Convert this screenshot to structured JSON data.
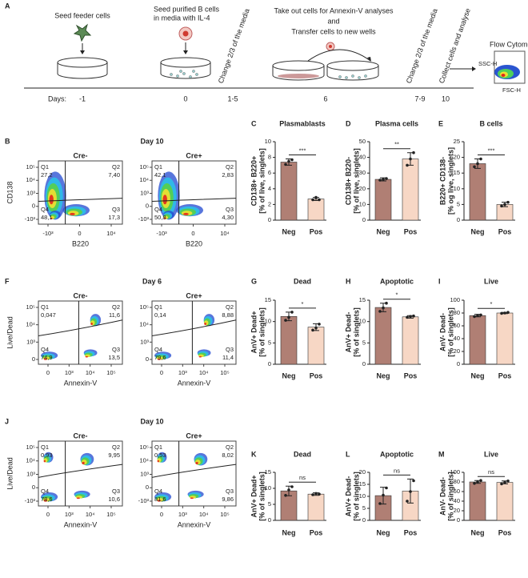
{
  "panel_a": {
    "letter": "A",
    "step1": "Seed feeder cells",
    "step2a": "Seed purified B cells",
    "step2b": "in media with IL-4",
    "change1": "Change 2/3 of the media",
    "step3a": "Take out cells for Annexin-V analyses",
    "step3b": "and",
    "step3c": "Transfer cells to new wells",
    "change2": "Change 2/3 of the media",
    "collect": "Collect  cells and analyse",
    "flow": "Flow Cytometry",
    "ssc": "SSC-H",
    "fsc": "FSC-H",
    "days_label": "Days:",
    "days": [
      "-1",
      "0",
      "1-5",
      "6",
      "7-9",
      "10"
    ]
  },
  "flow_panels": [
    {
      "letter": "B",
      "title": "Day 10",
      "xlabel": "B220",
      "ylabel": "CD138",
      "xticks": [
        "-10³",
        "0",
        "10⁴"
      ],
      "yticks": [
        "10⁵",
        "10⁴",
        "10³",
        "0",
        "-10³"
      ],
      "plots": [
        {
          "label": "Cre-",
          "quadrants": [
            {
              "name": "Q1",
              "value": "27,2"
            },
            {
              "name": "Q2",
              "value": "7,40"
            },
            {
              "name": "Q3",
              "value": "17,3"
            },
            {
              "name": "Q4",
              "value": "48,1"
            }
          ]
        },
        {
          "label": "Cre+",
          "quadrants": [
            {
              "name": "Q1",
              "value": "42,1"
            },
            {
              "name": "Q2",
              "value": "2,83"
            },
            {
              "name": "Q3",
              "value": "4,30"
            },
            {
              "name": "Q4",
              "value": "50,8"
            }
          ]
        }
      ]
    },
    {
      "letter": "F",
      "title": "Day 6",
      "xlabel": "Annexin-V",
      "ylabel": "Live/Dead",
      "xticks": [
        "0",
        "10³",
        "10⁴",
        "10⁵"
      ],
      "yticks": [
        "10⁵",
        "10⁴",
        "10³",
        "0"
      ],
      "plots": [
        {
          "label": "Cre-",
          "quadrants": [
            {
              "name": "Q1",
              "value": "0,047"
            },
            {
              "name": "Q2",
              "value": "11,6"
            },
            {
              "name": "Q3",
              "value": "13,5"
            },
            {
              "name": "Q4",
              "value": "74,9"
            }
          ]
        },
        {
          "label": "Cre+",
          "quadrants": [
            {
              "name": "Q1",
              "value": "0,14"
            },
            {
              "name": "Q2",
              "value": "8,88"
            },
            {
              "name": "Q3",
              "value": "11,4"
            },
            {
              "name": "Q4",
              "value": "79,6"
            }
          ]
        }
      ]
    },
    {
      "letter": "J",
      "title": "Day 10",
      "xlabel": "Annexin-V",
      "ylabel": "Live/Dead",
      "xticks": [
        "0",
        "10³",
        "10⁴",
        "10⁵"
      ],
      "yticks": [
        "10⁵",
        "10⁴",
        "10³",
        "0",
        "-10³"
      ],
      "plots": [
        {
          "label": "Cre-",
          "quadrants": [
            {
              "name": "Q1",
              "value": "0,93"
            },
            {
              "name": "Q2",
              "value": "9,95"
            },
            {
              "name": "Q3",
              "value": "10,6"
            },
            {
              "name": "Q4",
              "value": "78,6"
            }
          ]
        },
        {
          "label": "Cre+",
          "quadrants": [
            {
              "name": "Q1",
              "value": "0,53"
            },
            {
              "name": "Q2",
              "value": "8,02"
            },
            {
              "name": "Q3",
              "value": "9,86"
            },
            {
              "name": "Q4",
              "value": "81,6"
            }
          ]
        }
      ]
    }
  ],
  "chart_data": [
    {
      "type": "bar",
      "panel": "C",
      "title": "Plasmablasts",
      "ylabel": [
        "CD138+ B220+",
        "[% of live, singlets]"
      ],
      "categories": [
        "Neg",
        "Pos"
      ],
      "values": [
        7.4,
        2.7
      ],
      "errors": [
        0.4,
        0.2
      ],
      "points": [
        [
          7.1,
          7.5,
          7.7
        ],
        [
          2.6,
          2.9,
          2.6
        ]
      ],
      "colors": [
        "#b07f74",
        "#f7d7c5"
      ],
      "ylim": [
        0,
        10
      ],
      "yticks": [
        0,
        2,
        4,
        6,
        8,
        10
      ],
      "significance": "***"
    },
    {
      "type": "bar",
      "panel": "D",
      "title": "Plasma cells",
      "ylabel": [
        "CD138+ B220-",
        "[% of live, singlets]"
      ],
      "categories": [
        "Neg",
        "Pos"
      ],
      "values": [
        26,
        39
      ],
      "errors": [
        1,
        4
      ],
      "points": [
        [
          25.5,
          26,
          26.5
        ],
        [
          35,
          39,
          43
        ]
      ],
      "colors": [
        "#b07f74",
        "#f7d7c5"
      ],
      "ylim": [
        0,
        50
      ],
      "yticks": [
        0,
        10,
        20,
        30,
        40,
        50
      ],
      "significance": "**"
    },
    {
      "type": "bar",
      "panel": "E",
      "title": "B cells",
      "ylabel": [
        "B220+ CD138-",
        "[% og live, singlets]"
      ],
      "categories": [
        "Neg",
        "Pos"
      ],
      "values": [
        18,
        5
      ],
      "errors": [
        1.5,
        0.7
      ],
      "points": [
        [
          17,
          18,
          19.5
        ],
        [
          4.5,
          5,
          5.7
        ]
      ],
      "colors": [
        "#b07f74",
        "#f7d7c5"
      ],
      "ylim": [
        0,
        25
      ],
      "yticks": [
        0,
        5,
        10,
        15,
        20,
        25
      ],
      "significance": "***"
    },
    {
      "type": "bar",
      "panel": "G",
      "title": "Dead",
      "ylabel": [
        "AnV+ Dead+",
        "[% of singlets]"
      ],
      "categories": [
        "Neg",
        "Pos"
      ],
      "values": [
        11.2,
        8.7
      ],
      "errors": [
        1,
        0.8
      ],
      "points": [
        [
          10.3,
          11,
          12.2
        ],
        [
          8,
          8.5,
          9.4
        ]
      ],
      "colors": [
        "#b07f74",
        "#f7d7c5"
      ],
      "ylim": [
        0,
        15
      ],
      "yticks": [
        0,
        5,
        10,
        15
      ],
      "significance": "*"
    },
    {
      "type": "bar",
      "panel": "H",
      "title": "Apoptotic",
      "ylabel": [
        "AnV+ Dead-",
        "[% of singlets]"
      ],
      "categories": [
        "Neg",
        "Pos"
      ],
      "values": [
        13.3,
        11.1
      ],
      "errors": [
        1,
        0.3
      ],
      "points": [
        [
          12.4,
          13.2,
          14.3
        ],
        [
          11,
          11.2,
          11.3
        ]
      ],
      "colors": [
        "#b07f74",
        "#f7d7c5"
      ],
      "ylim": [
        0,
        15
      ],
      "yticks": [
        0,
        5,
        10,
        15
      ],
      "significance": "*"
    },
    {
      "type": "bar",
      "panel": "I",
      "title": "Live",
      "ylabel": [
        "AnV- Dead-",
        "[% of singlets]"
      ],
      "categories": [
        "Neg",
        "Pos"
      ],
      "values": [
        76,
        80
      ],
      "errors": [
        2,
        1
      ],
      "points": [
        [
          74.5,
          76,
          77
        ],
        [
          79.5,
          80,
          81
        ]
      ],
      "colors": [
        "#b07f74",
        "#f7d7c5"
      ],
      "ylim": [
        0,
        100
      ],
      "yticks": [
        0,
        20,
        40,
        60,
        80,
        100
      ],
      "significance": "*"
    },
    {
      "type": "bar",
      "panel": "K",
      "title": "Dead",
      "ylabel": [
        "AnV+ Dead+",
        "[% of singlets]"
      ],
      "categories": [
        "Neg",
        "Pos"
      ],
      "values": [
        9.2,
        8.2
      ],
      "errors": [
        1.5,
        0.4
      ],
      "points": [
        [
          7.8,
          9.5,
          10.5
        ],
        [
          8,
          8.4,
          8.2
        ]
      ],
      "colors": [
        "#b07f74",
        "#f7d7c5"
      ],
      "ylim": [
        0,
        15
      ],
      "yticks": [
        0,
        5,
        10,
        15
      ],
      "significance": "ns"
    },
    {
      "type": "bar",
      "panel": "L",
      "title": "Apoptotic",
      "ylabel": [
        "AnV+ Dead-",
        "[% of singlets]"
      ],
      "categories": [
        "Neg",
        "Pos"
      ],
      "values": [
        10.3,
        12.2
      ],
      "errors": [
        3.5,
        5
      ],
      "points": [
        [
          7,
          10.5,
          13.5
        ],
        [
          8,
          12,
          16.5
        ]
      ],
      "colors": [
        "#b07f74",
        "#f7d7c5"
      ],
      "ylim": [
        0,
        20
      ],
      "yticks": [
        0,
        5,
        10,
        15,
        20
      ],
      "significance": "ns"
    },
    {
      "type": "bar",
      "panel": "M",
      "title": "Live",
      "ylabel": [
        "AnV- Dead-",
        "[% of singlets]"
      ],
      "categories": [
        "Neg",
        "Pos"
      ],
      "values": [
        80,
        79
      ],
      "errors": [
        3,
        3
      ],
      "points": [
        [
          77,
          80,
          83
        ],
        [
          76,
          79,
          82
        ]
      ],
      "colors": [
        "#b07f74",
        "#f7d7c5"
      ],
      "ylim": [
        0,
        100
      ],
      "yticks": [
        0,
        20,
        40,
        60,
        80,
        100
      ],
      "significance": "ns"
    }
  ]
}
